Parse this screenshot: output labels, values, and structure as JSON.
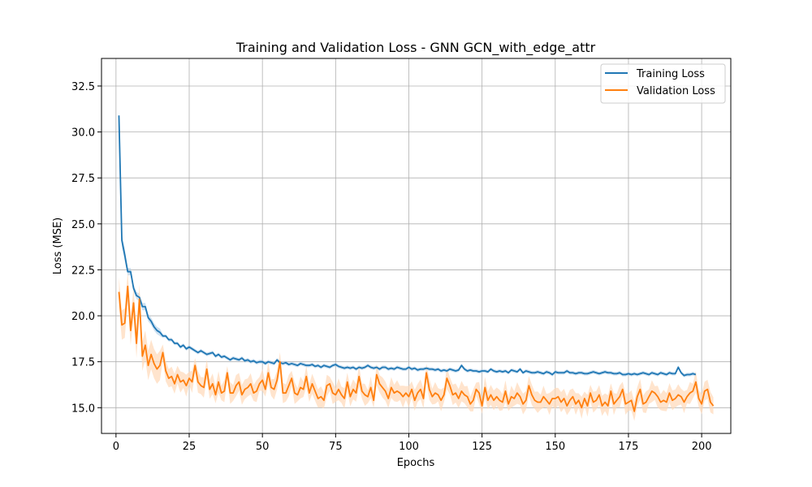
{
  "chart_data": {
    "type": "line",
    "title": "Training and Validation Loss - GNN GCN_with_edge_attr",
    "xlabel": "Epochs",
    "ylabel": "Loss (MSE)",
    "xlim": [
      -4.95,
      209.95
    ],
    "ylim": [
      13.6,
      34.0
    ],
    "xticks": [
      0,
      25,
      50,
      75,
      100,
      125,
      150,
      175,
      200
    ],
    "yticks": [
      15.0,
      17.5,
      20.0,
      22.5,
      25.0,
      27.5,
      30.0,
      32.5
    ],
    "ytick_labels": [
      "15.0",
      "17.5",
      "20.0",
      "22.5",
      "25.0",
      "27.5",
      "30.0",
      "32.5"
    ],
    "grid": true,
    "legend_position": "top-right",
    "colors": {
      "training": "#1f77b4",
      "validation": "#ff7f0e",
      "training_band": "#a6c8e6",
      "validation_band": "#ffd9b8"
    },
    "series": [
      {
        "name": "Training Loss",
        "key": "training",
        "values": [
          30.9,
          24.1,
          23.3,
          22.4,
          22.4,
          21.5,
          21.1,
          21.0,
          20.5,
          20.5,
          19.9,
          19.7,
          19.4,
          19.2,
          19.1,
          18.9,
          18.9,
          18.7,
          18.7,
          18.5,
          18.5,
          18.3,
          18.4,
          18.2,
          18.3,
          18.2,
          18.1,
          18.0,
          18.1,
          18.0,
          17.9,
          17.95,
          18.0,
          17.8,
          17.9,
          17.75,
          17.8,
          17.7,
          17.6,
          17.7,
          17.65,
          17.6,
          17.7,
          17.55,
          17.6,
          17.5,
          17.55,
          17.45,
          17.5,
          17.5,
          17.4,
          17.5,
          17.45,
          17.4,
          17.6,
          17.45,
          17.4,
          17.45,
          17.35,
          17.4,
          17.35,
          17.3,
          17.4,
          17.35,
          17.3,
          17.3,
          17.35,
          17.25,
          17.3,
          17.2,
          17.3,
          17.25,
          17.2,
          17.3,
          17.35,
          17.25,
          17.2,
          17.15,
          17.2,
          17.15,
          17.2,
          17.1,
          17.2,
          17.15,
          17.2,
          17.3,
          17.2,
          17.15,
          17.2,
          17.1,
          17.2,
          17.2,
          17.1,
          17.15,
          17.1,
          17.2,
          17.15,
          17.1,
          17.1,
          17.2,
          17.1,
          17.15,
          17.05,
          17.1,
          17.1,
          17.15,
          17.1,
          17.1,
          17.05,
          17.1,
          17.0,
          17.05,
          17.0,
          17.1,
          17.05,
          17.0,
          17.05,
          17.3,
          17.1,
          17.0,
          17.05,
          17.0,
          17.0,
          16.95,
          17.0,
          17.0,
          16.95,
          17.1,
          17.0,
          16.95,
          17.0,
          16.95,
          17.0,
          16.9,
          17.05,
          17.0,
          16.95,
          17.1,
          16.9,
          17.0,
          16.95,
          16.9,
          16.9,
          16.95,
          16.9,
          16.85,
          16.95,
          16.9,
          16.8,
          16.95,
          16.9,
          16.9,
          16.9,
          17.0,
          16.9,
          16.9,
          16.85,
          16.9,
          16.9,
          16.85,
          16.85,
          16.9,
          16.95,
          16.9,
          16.85,
          16.9,
          16.95,
          16.9,
          16.9,
          16.85,
          16.85,
          16.9,
          16.8,
          16.8,
          16.85,
          16.8,
          16.85,
          16.8,
          16.85,
          16.9,
          16.85,
          16.8,
          16.9,
          16.85,
          16.8,
          16.9,
          16.85,
          16.8,
          16.9,
          16.85,
          16.85,
          17.2,
          16.9,
          16.75,
          16.8,
          16.8,
          16.85,
          16.8
        ]
      },
      {
        "name": "Validation Loss",
        "key": "validation",
        "values": [
          21.3,
          19.5,
          19.6,
          21.6,
          19.2,
          20.7,
          18.5,
          20.9,
          17.8,
          18.4,
          17.3,
          17.9,
          17.4,
          17.1,
          17.3,
          18.0,
          17.0,
          16.6,
          16.7,
          16.3,
          16.8,
          16.4,
          16.5,
          16.2,
          16.6,
          16.4,
          17.3,
          16.4,
          16.2,
          16.1,
          17.1,
          16.0,
          16.3,
          15.7,
          16.4,
          15.8,
          15.9,
          16.9,
          15.8,
          15.8,
          16.2,
          16.4,
          15.7,
          16.0,
          16.1,
          16.3,
          15.8,
          15.9,
          16.3,
          16.5,
          16.0,
          16.9,
          16.1,
          16.0,
          16.5,
          17.5,
          15.8,
          15.8,
          16.2,
          16.6,
          15.8,
          15.7,
          16.1,
          16.0,
          16.7,
          15.8,
          16.3,
          15.9,
          15.5,
          15.6,
          15.4,
          16.2,
          16.3,
          15.8,
          15.7,
          16.0,
          15.7,
          15.5,
          16.4,
          15.6,
          16.0,
          15.8,
          16.7,
          15.9,
          15.7,
          15.6,
          16.1,
          15.4,
          16.8,
          16.3,
          16.1,
          15.9,
          15.5,
          16.1,
          15.8,
          15.9,
          15.8,
          15.6,
          15.8,
          15.6,
          16.0,
          15.4,
          15.8,
          16.0,
          15.5,
          16.9,
          16.0,
          15.6,
          15.8,
          15.7,
          15.4,
          15.7,
          16.6,
          16.2,
          15.7,
          15.8,
          15.5,
          15.9,
          15.7,
          15.6,
          15.2,
          15.4,
          16.0,
          15.8,
          15.1,
          16.1,
          15.4,
          15.7,
          15.4,
          15.6,
          15.4,
          15.3,
          15.9,
          15.2,
          15.6,
          15.5,
          15.8,
          15.6,
          15.2,
          15.4,
          16.2,
          15.7,
          15.4,
          15.3,
          15.3,
          15.6,
          15.4,
          15.2,
          15.5,
          15.5,
          15.6,
          15.3,
          15.5,
          15.1,
          15.4,
          15.6,
          15.2,
          15.4,
          15.0,
          15.5,
          15.1,
          15.8,
          15.3,
          15.4,
          15.7,
          15.1,
          15.3,
          15.1,
          15.9,
          15.2,
          15.4,
          15.6,
          16.0,
          15.2,
          15.3,
          15.4,
          14.8,
          15.6,
          16.0,
          15.2,
          15.3,
          15.6,
          15.9,
          15.8,
          15.6,
          15.3,
          15.4,
          15.3,
          15.8,
          15.4,
          15.5,
          15.7,
          15.6,
          15.3,
          15.6,
          15.8,
          15.9,
          16.4,
          15.5,
          15.2,
          15.9,
          16.0,
          15.3,
          15.1
        ]
      }
    ]
  }
}
